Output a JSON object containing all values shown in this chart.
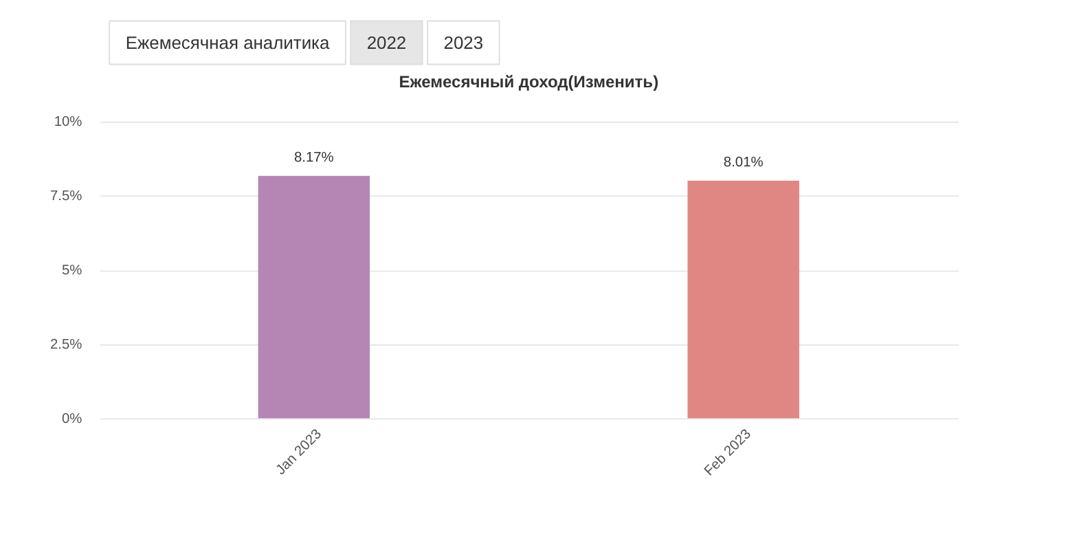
{
  "chart_data": {
    "type": "bar",
    "title": "Ежемесячный доход(Изменить)",
    "annotations": [
      "Ежемесячная аналитика",
      "2022",
      "2023"
    ],
    "categories": [
      "Jan 2023",
      "Feb 2023"
    ],
    "values": [
      8.17,
      8.01
    ],
    "colors": [
      "#b586b4",
      "#e08784"
    ],
    "value_labels": [
      "8.17%",
      "8.01%"
    ],
    "ylim": [
      0,
      10
    ],
    "yticks": [
      {
        "value": 0,
        "label": "0%"
      },
      {
        "value": 2.5,
        "label": "2.5%"
      },
      {
        "value": 5,
        "label": "5%"
      },
      {
        "value": 7.5,
        "label": "7.5%"
      },
      {
        "value": 10,
        "label": "10%"
      }
    ],
    "grid": "y"
  }
}
